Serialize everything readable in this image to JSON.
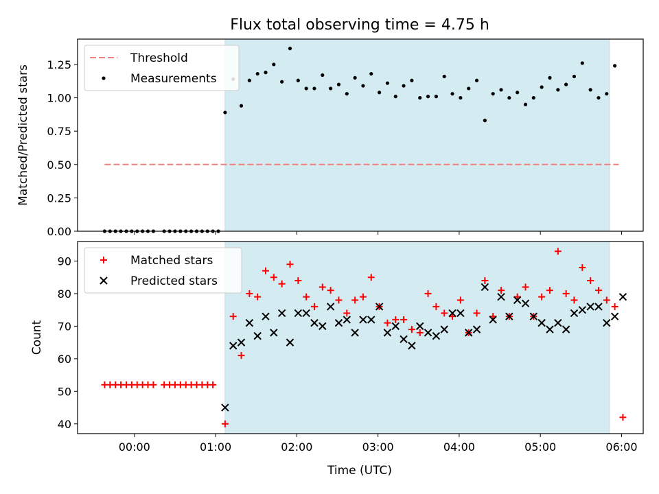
{
  "figure": {
    "title": "Flux total observing time = 4.75 h",
    "xlabel": "Time (UTC)"
  },
  "colors": {
    "observing_span": "#d4ebf1",
    "threshold": "#f08080",
    "measurements": "#000000",
    "matched": "#ff0000",
    "predicted": "#000000"
  },
  "chart_data": [
    {
      "type": "scatter",
      "name": "top",
      "ylabel": "Matched/Predicted stars",
      "ylim": [
        0,
        1.44
      ],
      "yticks": [
        0,
        0.25,
        0.5,
        0.75,
        1.0,
        1.25
      ],
      "ytick_labels": [
        "0.00",
        "0.25",
        "0.50",
        "0.75",
        "1.00",
        "1.25"
      ],
      "xlim": [
        "23:18",
        "06:16"
      ],
      "xticks": [
        "00:00",
        "01:00",
        "02:00",
        "03:00",
        "04:00",
        "05:00",
        "06:00"
      ],
      "observing_span": [
        "01:07",
        "05:51"
      ],
      "threshold": {
        "label": "Threshold",
        "y": 0.5,
        "x": [
          "23:38",
          "05:58"
        ]
      },
      "legend": {
        "placement": "upper-left",
        "entries": [
          "Threshold",
          "Measurements"
        ]
      },
      "series": [
        {
          "name": "Measurements",
          "marker": "dot",
          "x": [
            "23:38",
            "23:42",
            "23:46",
            "23:50",
            "23:54",
            "23:58",
            "00:02",
            "00:06",
            "00:10",
            "00:14",
            "00:22",
            "00:26",
            "00:30",
            "00:34",
            "00:38",
            "00:42",
            "00:46",
            "00:50",
            "00:54",
            "00:58",
            "01:02",
            "01:07",
            "01:13",
            "01:19",
            "01:25",
            "01:31",
            "01:37",
            "01:43",
            "01:49",
            "01:55",
            "02:01",
            "02:07",
            "02:13",
            "02:19",
            "02:25",
            "02:31",
            "02:37",
            "02:43",
            "02:49",
            "02:55",
            "03:01",
            "03:07",
            "03:13",
            "03:19",
            "03:25",
            "03:31",
            "03:37",
            "03:43",
            "03:49",
            "03:55",
            "04:01",
            "04:07",
            "04:13",
            "04:19",
            "04:25",
            "04:31",
            "04:37",
            "04:43",
            "04:49",
            "04:55",
            "05:01",
            "05:07",
            "05:13",
            "05:19",
            "05:25",
            "05:31",
            "05:37",
            "05:43",
            "05:49",
            "05:55"
          ],
          "y": [
            0,
            0,
            0,
            0,
            0,
            0,
            0,
            0,
            0,
            0,
            0,
            0,
            0,
            0,
            0,
            0,
            0,
            0,
            0,
            0,
            0,
            0.89,
            1.14,
            0.94,
            1.13,
            1.18,
            1.19,
            1.25,
            1.12,
            1.37,
            1.13,
            1.07,
            1.07,
            1.17,
            1.07,
            1.1,
            1.03,
            1.15,
            1.09,
            1.18,
            1.04,
            1.11,
            1.01,
            1.09,
            1.13,
            1.0,
            1.01,
            1.01,
            1.16,
            1.03,
            1.0,
            1.07,
            1.13,
            0.83,
            1.03,
            1.06,
            1.0,
            1.04,
            0.95,
            1.0,
            1.08,
            1.15,
            1.06,
            1.1,
            1.16,
            1.26,
            1.06,
            1.0,
            1.03,
            1.24
          ]
        }
      ]
    },
    {
      "type": "scatter",
      "name": "bottom",
      "ylabel": "Count",
      "ylim": [
        37,
        96
      ],
      "yticks": [
        40,
        50,
        60,
        70,
        80,
        90
      ],
      "ytick_labels": [
        "40",
        "50",
        "60",
        "70",
        "80",
        "90"
      ],
      "xlim": [
        "23:18",
        "06:16"
      ],
      "xticks": [
        "00:00",
        "01:00",
        "02:00",
        "03:00",
        "04:00",
        "05:00",
        "06:00"
      ],
      "observing_span": [
        "01:07",
        "05:51"
      ],
      "legend": {
        "placement": "upper-left",
        "entries": [
          "Matched stars",
          "Predicted stars"
        ]
      },
      "series": [
        {
          "name": "Matched stars",
          "marker": "plus",
          "x": [
            "23:38",
            "23:42",
            "23:46",
            "23:50",
            "23:54",
            "23:58",
            "00:02",
            "00:06",
            "00:10",
            "00:14",
            "00:22",
            "00:26",
            "00:30",
            "00:34",
            "00:38",
            "00:42",
            "00:46",
            "00:50",
            "00:54",
            "00:58",
            "01:07",
            "01:13",
            "01:19",
            "01:25",
            "01:31",
            "01:37",
            "01:43",
            "01:49",
            "01:55",
            "02:01",
            "02:07",
            "02:13",
            "02:19",
            "02:25",
            "02:31",
            "02:37",
            "02:43",
            "02:49",
            "02:55",
            "03:01",
            "03:07",
            "03:13",
            "03:19",
            "03:25",
            "03:31",
            "03:37",
            "03:43",
            "03:49",
            "03:55",
            "04:01",
            "04:07",
            "04:13",
            "04:19",
            "04:25",
            "04:31",
            "04:37",
            "04:43",
            "04:49",
            "04:55",
            "05:01",
            "05:07",
            "05:13",
            "05:19",
            "05:25",
            "05:31",
            "05:37",
            "05:43",
            "05:49",
            "05:55",
            "06:01"
          ],
          "y": [
            52,
            52,
            52,
            52,
            52,
            52,
            52,
            52,
            52,
            52,
            52,
            52,
            52,
            52,
            52,
            52,
            52,
            52,
            52,
            52,
            40,
            73,
            61,
            80,
            79,
            87,
            85,
            83,
            89,
            84,
            79,
            76,
            82,
            81,
            78,
            74,
            78,
            79,
            85,
            76,
            71,
            72,
            72,
            69,
            68,
            80,
            76,
            74,
            73,
            78,
            68,
            74,
            84,
            73,
            81,
            73,
            79,
            82,
            73,
            79,
            81,
            93,
            80,
            78,
            88,
            84,
            81,
            78,
            76,
            42
          ]
        },
        {
          "name": "Predicted stars",
          "marker": "x",
          "x": [
            "01:07",
            "01:13",
            "01:19",
            "01:25",
            "01:31",
            "01:37",
            "01:43",
            "01:49",
            "01:55",
            "02:01",
            "02:07",
            "02:13",
            "02:19",
            "02:25",
            "02:31",
            "02:37",
            "02:43",
            "02:49",
            "02:55",
            "03:01",
            "03:07",
            "03:13",
            "03:19",
            "03:25",
            "03:31",
            "03:37",
            "03:43",
            "03:49",
            "03:55",
            "04:01",
            "04:07",
            "04:13",
            "04:19",
            "04:25",
            "04:31",
            "04:37",
            "04:43",
            "04:49",
            "04:55",
            "05:01",
            "05:07",
            "05:13",
            "05:19",
            "05:25",
            "05:31",
            "05:37",
            "05:43",
            "05:49",
            "05:55",
            "06:01"
          ],
          "y": [
            45,
            64,
            65,
            71,
            67,
            73,
            68,
            74,
            65,
            74,
            74,
            71,
            70,
            76,
            71,
            72,
            68,
            72,
            72,
            76,
            68,
            70,
            66,
            64,
            70,
            68,
            67,
            69,
            74,
            74,
            68,
            69,
            82,
            72,
            79,
            73,
            78,
            77,
            73,
            71,
            69,
            71,
            69,
            74,
            75,
            76,
            76,
            71,
            73,
            79
          ]
        }
      ]
    }
  ]
}
